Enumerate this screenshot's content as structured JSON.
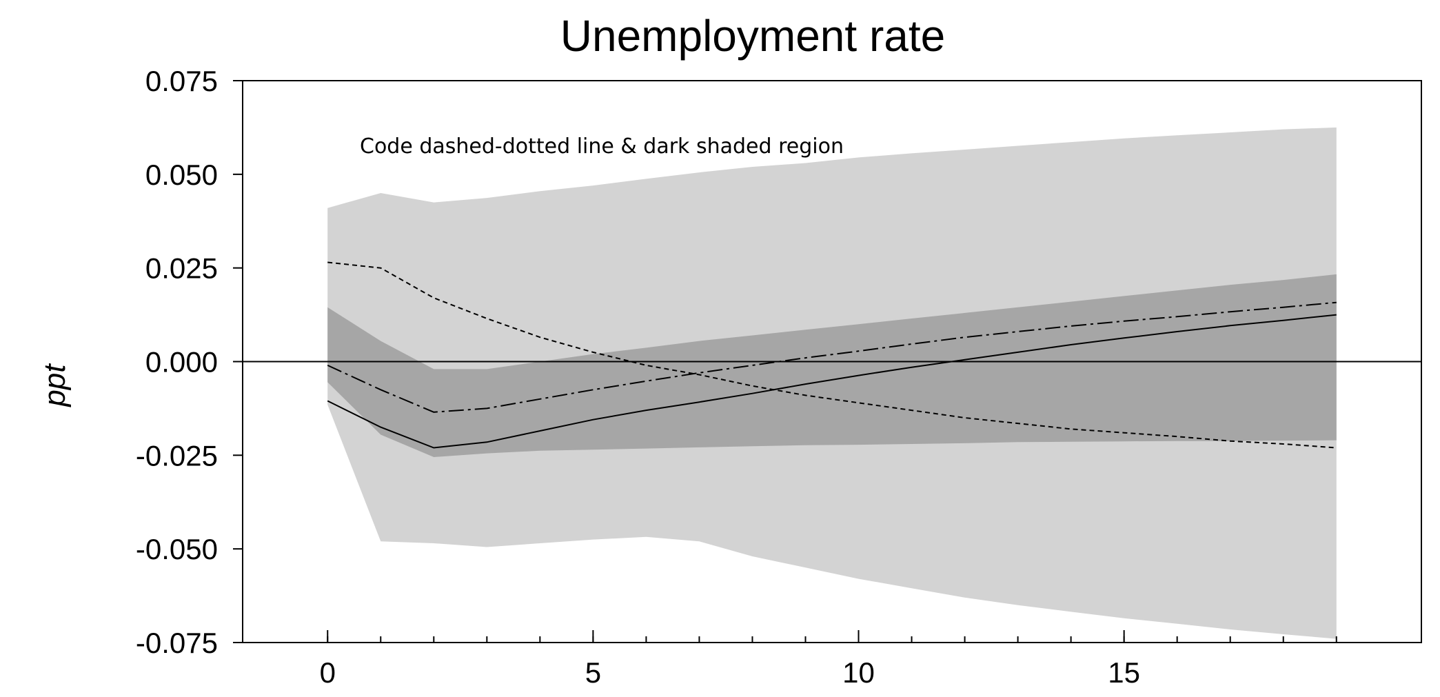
{
  "chart_data": {
    "type": "line",
    "title": "Unemployment rate",
    "ylabel": "ppt",
    "xlabel": "",
    "annotation": "Code dashed-dotted line & dark shaded region",
    "xlim": [
      -1.6,
      20.6
    ],
    "ylim": [
      -0.075,
      0.075
    ],
    "xticks": [
      0,
      5,
      10,
      15
    ],
    "xticks_minor": [
      0,
      1,
      2,
      3,
      4,
      5,
      6,
      7,
      8,
      9,
      10,
      11,
      12,
      13,
      14,
      15,
      16,
      17,
      18,
      19
    ],
    "yticks": [
      0.075,
      0.05,
      0.025,
      0.0,
      -0.025,
      -0.05,
      -0.075
    ],
    "ytick_labels": [
      "0.075",
      "0.050",
      "0.025",
      "0.000",
      "-0.025",
      "-0.050",
      "-0.075"
    ],
    "zero_line": true,
    "grid": false,
    "x": [
      0,
      1,
      2,
      3,
      4,
      5,
      6,
      7,
      8,
      9,
      10,
      11,
      12,
      13,
      14,
      15,
      16,
      17,
      18,
      19
    ],
    "bands": [
      {
        "fill": "#d3d3d3",
        "lower": [
          -0.0115,
          -0.048,
          -0.0485,
          -0.0495,
          -0.0485,
          -0.0475,
          -0.0468,
          -0.048,
          -0.052,
          -0.055,
          -0.058,
          -0.0605,
          -0.063,
          -0.065,
          -0.0668,
          -0.0685,
          -0.07,
          -0.0715,
          -0.0728,
          -0.074
        ],
        "upper": [
          0.041,
          0.045,
          0.0425,
          0.0437,
          0.0455,
          0.047,
          0.0488,
          0.0505,
          0.052,
          0.053,
          0.0545,
          0.0556,
          0.0566,
          0.0576,
          0.0586,
          0.0596,
          0.0604,
          0.0612,
          0.062,
          0.0625
        ]
      },
      {
        "fill": "#a6a6a6",
        "lower": [
          -0.0055,
          -0.0195,
          -0.0255,
          -0.0245,
          -0.0238,
          -0.0235,
          -0.0232,
          -0.0229,
          -0.0226,
          -0.0223,
          -0.0222,
          -0.022,
          -0.0218,
          -0.0215,
          -0.0214,
          -0.0213,
          -0.0212,
          -0.0212,
          -0.0211,
          -0.021
        ],
        "upper": [
          0.0145,
          0.0055,
          -0.002,
          -0.002,
          0.0,
          0.002,
          0.0037,
          0.0055,
          0.007,
          0.0085,
          0.01,
          0.0115,
          0.013,
          0.0145,
          0.016,
          0.0175,
          0.019,
          0.0205,
          0.0218,
          0.0233
        ]
      }
    ],
    "series": [
      {
        "style": "solid",
        "values": [
          -0.0105,
          -0.0175,
          -0.023,
          -0.0215,
          -0.0185,
          -0.0155,
          -0.013,
          -0.0108,
          -0.0085,
          -0.006,
          -0.0037,
          -0.0015,
          0.0005,
          0.0025,
          0.0045,
          0.0063,
          0.008,
          0.0096,
          0.011,
          0.0125
        ]
      },
      {
        "style": "dashdot",
        "values": [
          -0.001,
          -0.0075,
          -0.0135,
          -0.0125,
          -0.01,
          -0.0075,
          -0.0052,
          -0.003,
          -0.001,
          0.001,
          0.0028,
          0.0047,
          0.0065,
          0.008,
          0.0095,
          0.0108,
          0.012,
          0.0133,
          0.0145,
          0.0158
        ]
      },
      {
        "style": "dashed",
        "values": [
          0.0265,
          0.025,
          0.017,
          0.0115,
          0.0065,
          0.0025,
          -0.001,
          -0.0035,
          -0.0065,
          -0.009,
          -0.011,
          -0.013,
          -0.015,
          -0.0165,
          -0.018,
          -0.019,
          -0.02,
          -0.0212,
          -0.022,
          -0.023
        ]
      }
    ]
  }
}
